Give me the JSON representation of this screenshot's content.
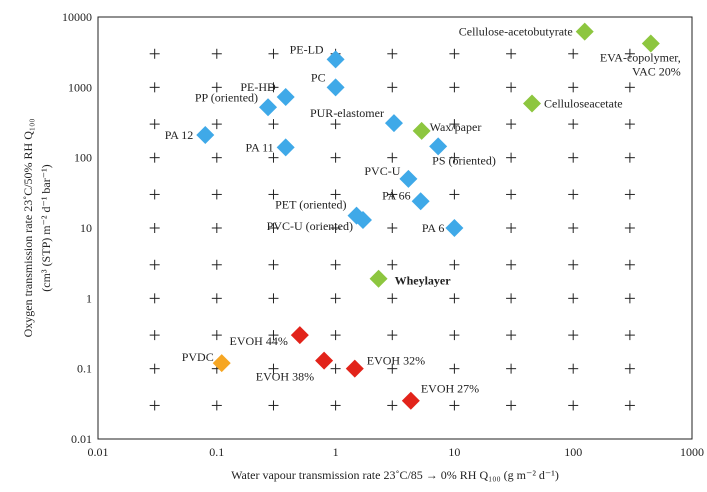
{
  "chart_data": {
    "type": "scatter",
    "x_scale": "log",
    "y_scale": "log",
    "xlim": [
      0.01,
      1000
    ],
    "ylim": [
      0.01,
      10000
    ],
    "x_ticks": [
      "0.01",
      "0.1",
      "1",
      "10",
      "100",
      "1000"
    ],
    "y_ticks": [
      "10000",
      "1000",
      "100",
      "10",
      "1",
      "0.1",
      "0.01"
    ],
    "xlabel": "Water vapour transmission rate 23˚C/85 → 0% RH Q₁₀₀ (g m⁻² d⁻¹)",
    "ylabel_line1": "Oxygen transmission rate 23˚C/50% RH Q₁₀₀",
    "ylabel_line2": "(cm³ (STP) m⁻² d⁻¹ bar⁻¹)",
    "grid": "cross-markers",
    "colors": {
      "blue": "#3fa9e8",
      "green": "#8dc63f",
      "red": "#e2231a",
      "orange": "#f6a623"
    },
    "points": [
      {
        "label": "PA 12",
        "x": 0.08,
        "y": 210,
        "color": "blue"
      },
      {
        "label": "PP (oriented)",
        "x": 0.27,
        "y": 520,
        "color": "blue"
      },
      {
        "label": "PE-HD",
        "x": 0.38,
        "y": 730,
        "color": "blue"
      },
      {
        "label": "PA 11",
        "x": 0.38,
        "y": 140,
        "color": "blue"
      },
      {
        "label": "PE-LD",
        "x": 1.0,
        "y": 2500,
        "color": "blue"
      },
      {
        "label": "PC",
        "x": 1.0,
        "y": 1000,
        "color": "blue"
      },
      {
        "label": "PUR-elastomer",
        "x": 3.1,
        "y": 310,
        "color": "blue"
      },
      {
        "label": "PS (oriented)",
        "x": 7.3,
        "y": 145,
        "color": "blue"
      },
      {
        "label": "PVC-U",
        "x": 4.1,
        "y": 50,
        "color": "blue"
      },
      {
        "label": "PA 66",
        "x": 5.2,
        "y": 24,
        "color": "blue"
      },
      {
        "label": "PET (oriented)",
        "x": 1.5,
        "y": 15,
        "color": "blue"
      },
      {
        "label": "PVC-U (oriented)",
        "x": 1.7,
        "y": 13,
        "color": "blue"
      },
      {
        "label": "PA 6",
        "x": 10,
        "y": 10,
        "color": "blue"
      },
      {
        "label": "Wax/paper",
        "x": 5.3,
        "y": 240,
        "color": "green"
      },
      {
        "label": "Cellulose-acetobutyrate",
        "x": 125,
        "y": 6200,
        "color": "green"
      },
      {
        "label": "EVA-copolymer, VAC 20%",
        "x": 450,
        "y": 4200,
        "color": "green"
      },
      {
        "label": "Celluloseacetate",
        "x": 45,
        "y": 590,
        "color": "green"
      },
      {
        "label": "Wheylayer",
        "x": 2.3,
        "y": 1.9,
        "color": "green"
      },
      {
        "label": "PVDC",
        "x": 0.11,
        "y": 0.12,
        "color": "orange"
      },
      {
        "label": "EVOH 44%",
        "x": 0.5,
        "y": 0.3,
        "color": "red"
      },
      {
        "label": "EVOH 38%",
        "x": 0.8,
        "y": 0.13,
        "color": "red"
      },
      {
        "label": "EVOH 32%",
        "x": 1.45,
        "y": 0.1,
        "color": "red"
      },
      {
        "label": "EVOH 27%",
        "x": 4.3,
        "y": 0.035,
        "color": "red"
      }
    ]
  }
}
